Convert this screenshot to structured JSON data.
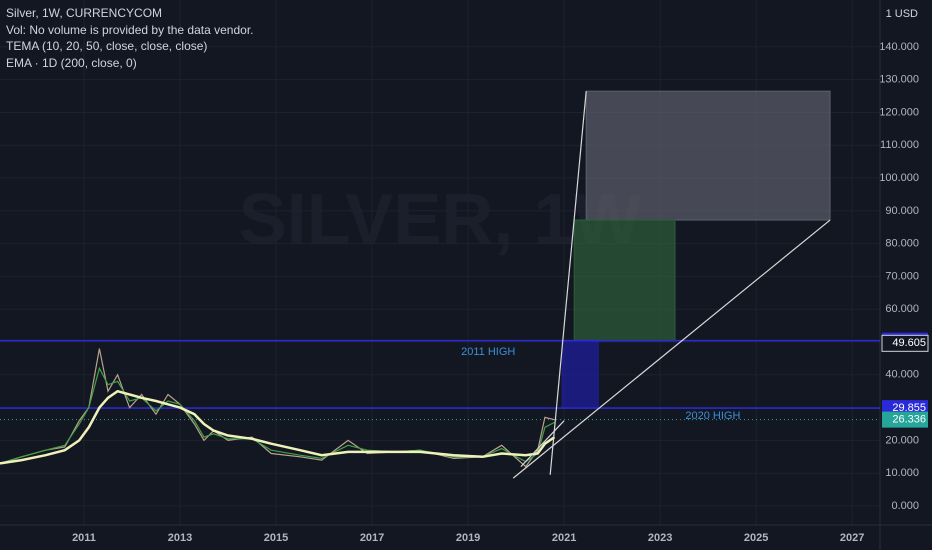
{
  "chart_data": {
    "type": "line",
    "title": "Silver, 1W, CURRENCYCOM",
    "notes": [
      "Vol: No volume is provided by the data vendor.",
      "TEMA (10, 20, 50, close, close, close)",
      "EMA · 1D (200, close, 0)"
    ],
    "watermark": "SILVER, 1W",
    "currency": "1 USD",
    "x": [
      2009.25,
      2009.7,
      2010.2,
      2010.6,
      2010.9,
      2011.1,
      2011.32,
      2011.5,
      2011.7,
      2011.95,
      2012.2,
      2012.5,
      2012.75,
      2013.0,
      2013.3,
      2013.5,
      2013.7,
      2014.0,
      2014.5,
      2014.9,
      2015.5,
      2015.95,
      2016.5,
      2016.9,
      2017.5,
      2018.0,
      2018.7,
      2019.3,
      2019.7,
      2020.2,
      2020.45,
      2020.6,
      2020.8
    ],
    "series": [
      {
        "name": "Silver, 1W, CURRENCYCOM",
        "color": "#b9a38a",
        "values": [
          13,
          15,
          17,
          18,
          26,
          30,
          48,
          35,
          40,
          30,
          34,
          28,
          34,
          31,
          25,
          20,
          23,
          20,
          21,
          16,
          15,
          14,
          20,
          16,
          16.5,
          17,
          14.5,
          15,
          18.5,
          12,
          17,
          27,
          26.3
        ]
      },
      {
        "name": "TEMA (10, 20, 50, close, close, close)",
        "color": "#43a047",
        "values": [
          13,
          15,
          17,
          18.5,
          25,
          30,
          42,
          37,
          38,
          32,
          33,
          29,
          32,
          31,
          26,
          21,
          22,
          20.5,
          20.5,
          17,
          15.5,
          14.5,
          18.5,
          17,
          16.5,
          17,
          15,
          15,
          17.5,
          13.5,
          16,
          24,
          25.5
        ]
      },
      {
        "name": "EMA · 1D (200, close, 0)",
        "color": "#eef2b8",
        "values": [
          13,
          14,
          15.5,
          17,
          20,
          24,
          30,
          33,
          35,
          34,
          33,
          32,
          31,
          30,
          28,
          25,
          23,
          21.5,
          20.5,
          19,
          17,
          15.5,
          16.5,
          16.5,
          16.5,
          16.5,
          15.5,
          15,
          16,
          15.5,
          16,
          19,
          21
        ]
      }
    ],
    "xlim": [
      2009.25,
      2027.58
    ],
    "xticks": [
      2011,
      2013,
      2015,
      2017,
      2019,
      2021,
      2023,
      2025,
      2027
    ],
    "ylim": [
      -5.8,
      154.3
    ],
    "yticks": [
      {
        "value": 0,
        "label": "0.000"
      },
      {
        "value": 10,
        "label": "10.000"
      },
      {
        "value": 20,
        "label": "20.000"
      },
      {
        "value": 30,
        "label": "30.000"
      },
      {
        "value": 40,
        "label": "40.000"
      },
      {
        "value": 50,
        "label": "50.000"
      },
      {
        "value": 60,
        "label": "60.000"
      },
      {
        "value": 70,
        "label": "70.000"
      },
      {
        "value": 80,
        "label": "80.000"
      },
      {
        "value": 90,
        "label": "90.000"
      },
      {
        "value": 100,
        "label": "100.000"
      },
      {
        "value": 110,
        "label": "110.000"
      },
      {
        "value": 120,
        "label": "120.000"
      },
      {
        "value": 130,
        "label": "130.000"
      },
      {
        "value": 140,
        "label": "140.000"
      }
    ],
    "grid": true,
    "levels": [
      {
        "value": 50.437,
        "color": "#2a2ad8",
        "style": "solid"
      },
      {
        "value": 49.605,
        "color": "#131722",
        "style": "none"
      },
      {
        "value": 29.855,
        "color": "#2a2ad8",
        "style": "solid"
      },
      {
        "value": 26.336,
        "color": "#26a69a",
        "style": "dotted"
      }
    ],
    "boxes": [
      {
        "x": [
          2021.46,
          2026.54
        ],
        "y": [
          87.2,
          126.5
        ],
        "color": "#5d606b"
      },
      {
        "x": [
          2021.21,
          2023.31
        ],
        "y": [
          50.3,
          87.2
        ],
        "color": "#2e5e3a"
      },
      {
        "x": [
          2020.96,
          2021.71
        ],
        "y": [
          29.9,
          50.3
        ],
        "color": "#1e1ea0"
      }
    ],
    "lines": [
      {
        "x": [
          2020.71,
          2021.46
        ],
        "y": [
          9.5,
          126.5
        ],
        "color": "#d8d8d8"
      },
      {
        "x": [
          2019.94,
          2026.54
        ],
        "y": [
          8.5,
          87.2
        ],
        "color": "#d8d8d8"
      },
      {
        "x": [
          2020.1,
          2021.0
        ],
        "y": [
          12,
          26
        ],
        "color": "#d8d8d8"
      }
    ],
    "annotations": [
      {
        "text": "2011 HIGH",
        "x": 2019.42,
        "y": 47.0,
        "color": "#3d8fd8"
      },
      {
        "text": "2020 HIGH",
        "x": 2024.1,
        "y": 27.4,
        "color": "#3d8fd8"
      }
    ]
  }
}
